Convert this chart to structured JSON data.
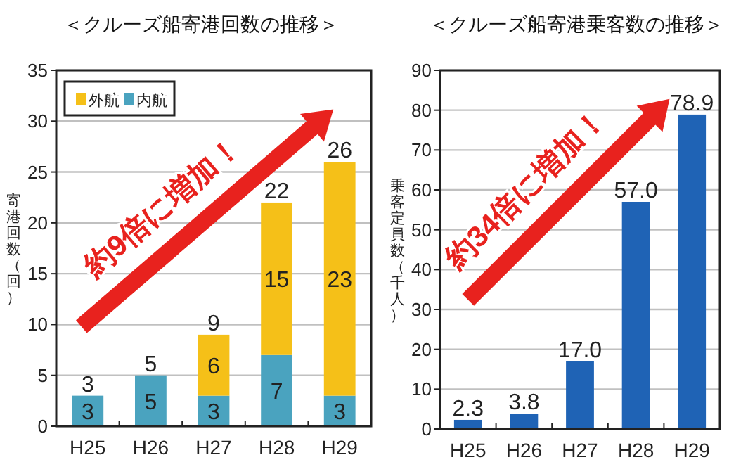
{
  "chart_data": [
    {
      "type": "bar",
      "title": "＜クルーズ船寄港回数の推移＞",
      "ylabel": "寄港回数（回）",
      "categories": [
        "H25",
        "H26",
        "H27",
        "H28",
        "H29"
      ],
      "stacked": true,
      "series": [
        {
          "name": "内航",
          "color": "#4aa3bf",
          "values": [
            3,
            5,
            3,
            7,
            3
          ]
        },
        {
          "name": "外航",
          "color": "#f5c018",
          "values": [
            null,
            null,
            6,
            15,
            23
          ]
        }
      ],
      "data_labels": true,
      "totals": [
        "3",
        "5",
        "9",
        "22",
        "26"
      ],
      "ylim": [
        0,
        35
      ],
      "yticks": [
        0,
        5,
        10,
        15,
        20,
        25,
        30,
        35
      ],
      "grid": "y",
      "legend": "top left",
      "annotations": [
        "約9倍に増加！"
      ]
    },
    {
      "type": "bar",
      "title": "＜クルーズ船寄港乗客数の推移＞",
      "ylabel": "乗客定員数（千人）",
      "categories": [
        "H25",
        "H26",
        "H27",
        "H28",
        "H29"
      ],
      "series": [
        {
          "color": "#1f63b5",
          "values": [
            2.3,
            3.8,
            17.0,
            57.0,
            78.9
          ],
          "value_labels": [
            "2.3",
            "3.8",
            "17.0",
            "57.0",
            "78.9"
          ]
        }
      ],
      "ylim": [
        0,
        90
      ],
      "yticks": [
        0,
        10,
        20,
        30,
        40,
        50,
        60,
        70,
        80,
        90
      ],
      "grid": "y",
      "annotations": [
        "約34倍に増加！"
      ]
    }
  ]
}
